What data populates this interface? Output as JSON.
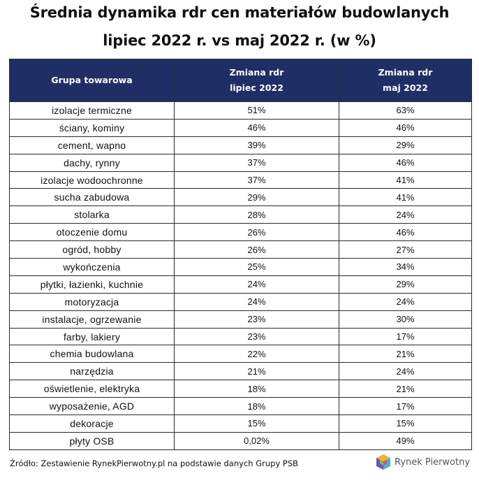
{
  "chart_data": {
    "type": "table",
    "title": "Średnia dynamika rdr cen materiałów budowlanych",
    "subtitle": "lipiec 2022 r. vs maj 2022 r. (w %)",
    "columns": [
      {
        "line1": "Grupa towarowa",
        "line2": ""
      },
      {
        "line1": "Zmiana rdr",
        "line2": "lipiec 2022"
      },
      {
        "line1": "Zmiana rdr",
        "line2": "maj 2022"
      }
    ],
    "rows": [
      {
        "category": "izolacje termiczne",
        "july": "51%",
        "may": "63%"
      },
      {
        "category": "ściany, kominy",
        "july": "46%",
        "may": "46%"
      },
      {
        "category": "cement, wapno",
        "july": "39%",
        "may": "29%"
      },
      {
        "category": "dachy, rynny",
        "july": "37%",
        "may": "46%"
      },
      {
        "category": "izolacje wodoochronne",
        "july": "37%",
        "may": "41%"
      },
      {
        "category": "sucha zabudowa",
        "july": "29%",
        "may": "41%"
      },
      {
        "category": "stolarka",
        "july": "28%",
        "may": "24%"
      },
      {
        "category": "otoczenie domu",
        "july": "26%",
        "may": "46%"
      },
      {
        "category": "ogród, hobby",
        "july": "26%",
        "may": "27%"
      },
      {
        "category": "wykończenia",
        "july": "25%",
        "may": "34%"
      },
      {
        "category": "płytki, łazienki, kuchnie",
        "july": "24%",
        "may": "29%"
      },
      {
        "category": "motoryzacja",
        "july": "24%",
        "may": "24%"
      },
      {
        "category": "instalacje, ogrzewanie",
        "july": "23%",
        "may": "30%"
      },
      {
        "category": "farby, lakiery",
        "july": "23%",
        "may": "17%"
      },
      {
        "category": "chemia budowlana",
        "july": "22%",
        "may": "21%"
      },
      {
        "category": "narzędzia",
        "july": "21%",
        "may": "24%"
      },
      {
        "category": "oświetlenie, elektryka",
        "july": "18%",
        "may": "21%"
      },
      {
        "category": "wyposażenie, AGD",
        "july": "18%",
        "may": "17%"
      },
      {
        "category": "dekoracje",
        "july": "15%",
        "may": "15%"
      },
      {
        "category": "płyty OSB",
        "july": "0,02%",
        "may": "49%"
      }
    ]
  },
  "footer": {
    "source": "Źródło: Zestawienie RynekPierwotny.pl na podstawie danych Grupy PSB",
    "logo_text": "Rynek Pierwotny",
    "logo_icon": "cube-logo-icon"
  },
  "colors": {
    "header_bg": "#1f2f66",
    "header_text": "#ffffff",
    "border": "#2a2a2a"
  }
}
